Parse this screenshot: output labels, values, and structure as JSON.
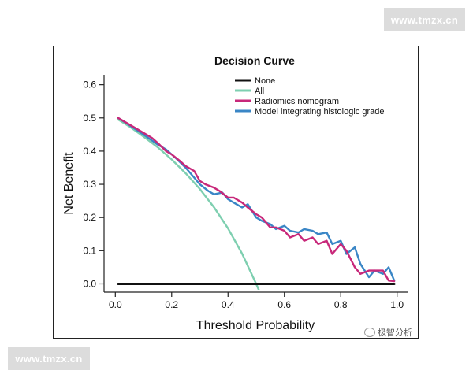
{
  "watermark": {
    "top": "www.tmzx.cn",
    "bottom": "www.tmzx.cn"
  },
  "source_label": "极智分析",
  "colors": {
    "none": "#111111",
    "all": "#7ecfb0",
    "radiomics": "#c8287a",
    "model": "#3a86c6"
  },
  "chart_data": {
    "type": "line",
    "title": "Decision Curve",
    "xlabel": "Threshold Probability",
    "ylabel": "Net Benefit",
    "xlim": [
      -0.04,
      1.04
    ],
    "ylim": [
      -0.025,
      0.63
    ],
    "xticks": [
      0.0,
      0.2,
      0.4,
      0.6,
      0.8,
      1.0
    ],
    "xtick_labels": [
      "0.0",
      "0.2",
      "0.4",
      "0.6",
      "0.8",
      "1.0"
    ],
    "yticks": [
      0.0,
      0.1,
      0.2,
      0.3,
      0.4,
      0.5,
      0.6
    ],
    "ytick_labels": [
      "0.0",
      "0.1",
      "0.2",
      "0.3",
      "0.4",
      "0.5",
      "0.6"
    ],
    "legend_position": "top-right",
    "series": [
      {
        "name": "None",
        "color": "#111111",
        "x": [
          0.01,
          0.99
        ],
        "y": [
          0.0,
          0.0
        ]
      },
      {
        "name": "All",
        "color": "#7ecfb0",
        "x": [
          0.01,
          0.05,
          0.1,
          0.15,
          0.2,
          0.25,
          0.3,
          0.35,
          0.4,
          0.45,
          0.5,
          0.515
        ],
        "y": [
          0.495,
          0.474,
          0.444,
          0.412,
          0.375,
          0.333,
          0.286,
          0.231,
          0.167,
          0.091,
          0.0,
          -0.03
        ]
      },
      {
        "name": "Radiomics nomogram",
        "color": "#c8287a",
        "x": [
          0.01,
          0.05,
          0.1,
          0.13,
          0.15,
          0.18,
          0.2,
          0.23,
          0.25,
          0.28,
          0.3,
          0.32,
          0.35,
          0.37,
          0.4,
          0.42,
          0.45,
          0.47,
          0.5,
          0.52,
          0.55,
          0.57,
          0.6,
          0.62,
          0.65,
          0.67,
          0.7,
          0.72,
          0.75,
          0.77,
          0.8,
          0.82,
          0.85,
          0.87,
          0.9,
          0.92,
          0.95,
          0.97,
          0.99
        ],
        "y": [
          0.5,
          0.48,
          0.455,
          0.44,
          0.425,
          0.4,
          0.39,
          0.37,
          0.355,
          0.34,
          0.31,
          0.3,
          0.29,
          0.28,
          0.26,
          0.26,
          0.245,
          0.23,
          0.21,
          0.2,
          0.17,
          0.17,
          0.16,
          0.14,
          0.15,
          0.13,
          0.14,
          0.12,
          0.13,
          0.09,
          0.12,
          0.1,
          0.05,
          0.03,
          0.04,
          0.04,
          0.04,
          0.01,
          0.008
        ]
      },
      {
        "name": "Model integrating histologic grade",
        "color": "#3a86c6",
        "x": [
          0.01,
          0.05,
          0.1,
          0.15,
          0.18,
          0.2,
          0.22,
          0.25,
          0.28,
          0.3,
          0.33,
          0.35,
          0.38,
          0.4,
          0.43,
          0.45,
          0.47,
          0.5,
          0.52,
          0.55,
          0.57,
          0.6,
          0.62,
          0.65,
          0.67,
          0.7,
          0.72,
          0.75,
          0.77,
          0.8,
          0.82,
          0.85,
          0.87,
          0.9,
          0.92,
          0.95,
          0.97,
          0.99
        ],
        "y": [
          0.5,
          0.478,
          0.45,
          0.42,
          0.405,
          0.39,
          0.375,
          0.35,
          0.32,
          0.3,
          0.28,
          0.27,
          0.275,
          0.255,
          0.24,
          0.23,
          0.24,
          0.2,
          0.19,
          0.18,
          0.165,
          0.175,
          0.16,
          0.155,
          0.165,
          0.16,
          0.15,
          0.155,
          0.12,
          0.13,
          0.09,
          0.11,
          0.06,
          0.02,
          0.04,
          0.03,
          0.05,
          0.01
        ]
      }
    ]
  }
}
